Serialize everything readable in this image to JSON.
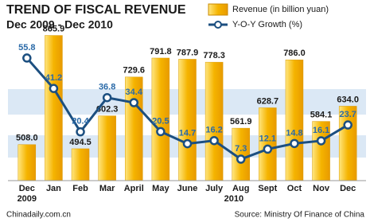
{
  "chart_data": {
    "type": "bar-line",
    "title": "TREND OF FISCAL REVENUE",
    "subtitle": "Dec 2009 - Dec 2010",
    "categories": [
      "Dec",
      "Jan",
      "Feb",
      "Mar",
      "April",
      "May",
      "June",
      "July",
      "Aug",
      "Sept",
      "Oct",
      "Nov",
      "Dec"
    ],
    "year_labels": [
      "2009",
      "2010"
    ],
    "series": [
      {
        "name": "Revenue (in billion yuan)",
        "type": "bar",
        "color": "#f5b400",
        "values": [
          508.0,
          865.9,
          494.5,
          602.3,
          729.6,
          791.8,
          787.9,
          778.3,
          561.9,
          628.7,
          786.0,
          584.1,
          634.0
        ],
        "value_labels": [
          "508.0",
          "865.9",
          "494.5",
          "602.3",
          "729.6",
          "791.8",
          "787.9",
          "778.3",
          "561.9",
          "628.7",
          "786.0",
          "584.1",
          "634.0"
        ]
      },
      {
        "name": "Y-O-Y Growth (%)",
        "type": "line",
        "axis": "y2",
        "color": "#1c4f80",
        "values": [
          55.8,
          41.2,
          20.4,
          36.8,
          34.4,
          20.5,
          14.7,
          16.2,
          7.3,
          12.1,
          14.8,
          16.1,
          23.7
        ]
      }
    ],
    "ylim": [
      390,
      930
    ],
    "y2lim": [
      -3,
      76
    ],
    "footer_left": "Chinadaily.com.cn",
    "source": "Source: Ministry Of Finance of China"
  }
}
